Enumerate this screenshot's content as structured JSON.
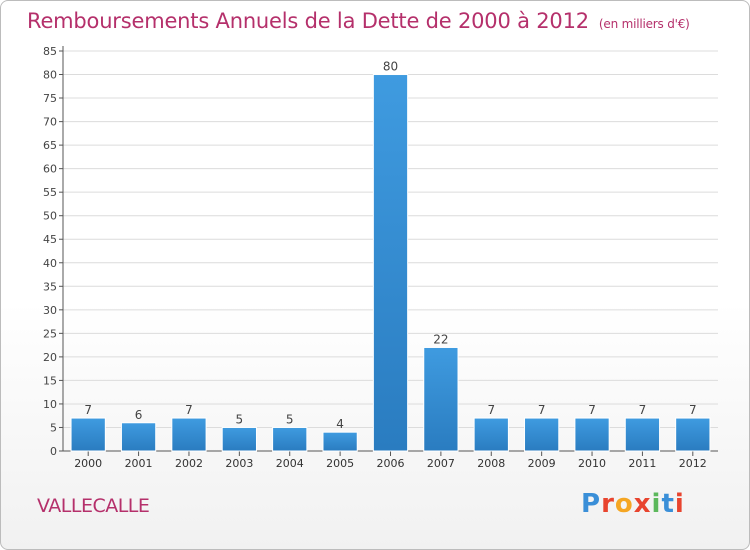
{
  "header": {
    "title": "Remboursements Annuels de la Dette de 2000 à 2012",
    "unit": "(en milliers d'€)"
  },
  "footer": {
    "commune": "VALLECALLE",
    "logo_letters": [
      "P",
      "r",
      "o",
      "x",
      "i",
      "t",
      "i"
    ],
    "logo_colors": [
      "#3a8fd8",
      "#e8442e",
      "#f5a623",
      "#e8442e",
      "#5cb85c",
      "#3a8fd8",
      "#e8442e"
    ]
  },
  "chart_data": {
    "type": "bar",
    "title": "Remboursements Annuels de la Dette de 2000 à 2012",
    "categories": [
      "2000",
      "2001",
      "2002",
      "2003",
      "2004",
      "2005",
      "2006",
      "2007",
      "2008",
      "2009",
      "2010",
      "2011",
      "2012"
    ],
    "values": [
      7,
      6,
      7,
      5,
      5,
      4,
      80,
      22,
      7,
      7,
      7,
      7,
      7
    ],
    "ylim": [
      0,
      85
    ],
    "yticks": [
      0,
      5,
      10,
      15,
      20,
      25,
      30,
      35,
      40,
      45,
      50,
      55,
      60,
      65,
      70,
      75,
      80,
      85
    ],
    "grid": true,
    "bar_color": "#3f9be0",
    "bar_color_dark": "#2a7cc0"
  }
}
